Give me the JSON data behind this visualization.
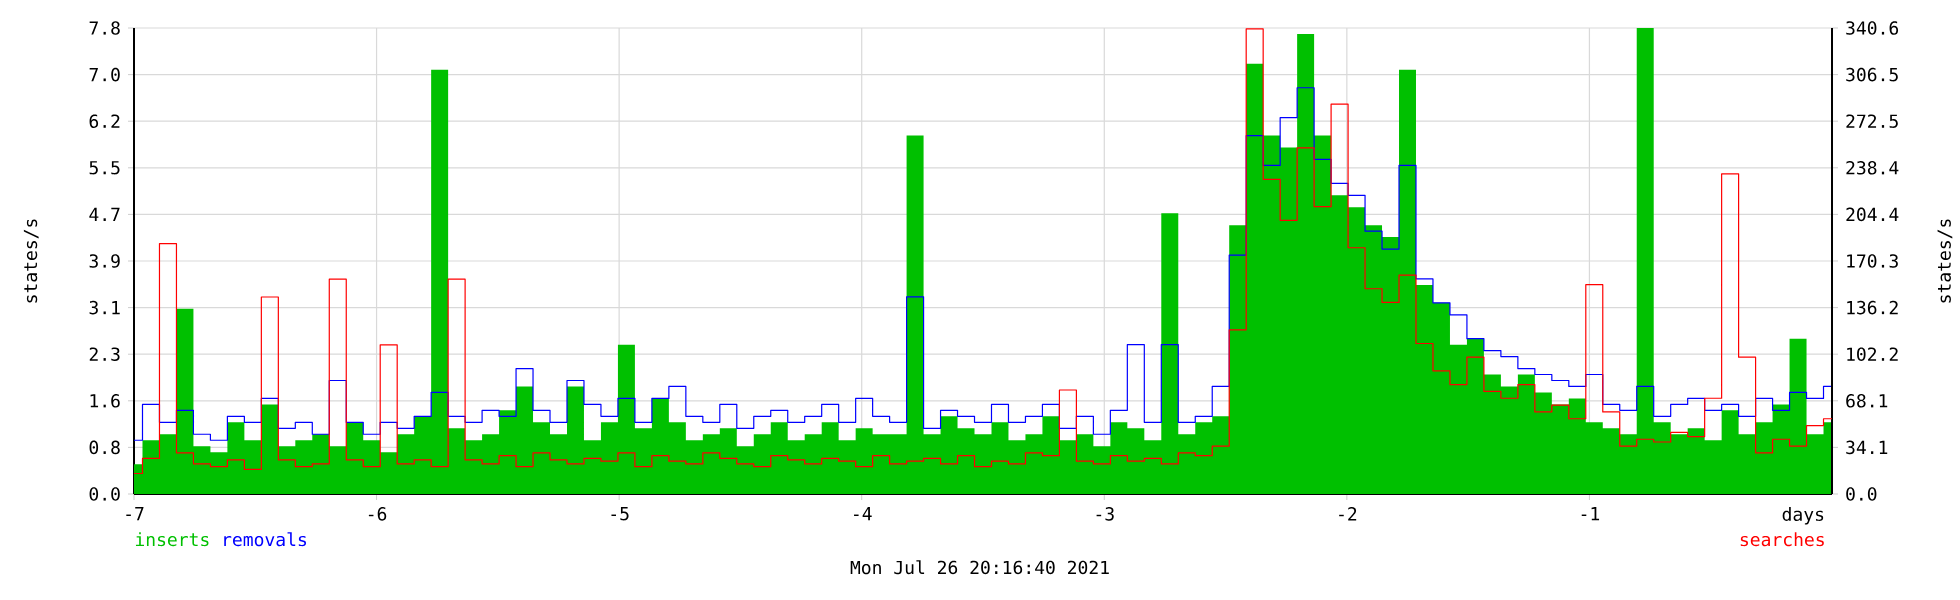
{
  "chart_data": {
    "type": "line",
    "xlabel": "days",
    "ylabel": "states/s",
    "y2label": "states/s",
    "annotations": [
      "Mon Jul 26 20:16:40 2021"
    ],
    "x": [
      -7,
      -6.93,
      -6.86,
      -6.79,
      -6.72,
      -6.65,
      -6.58,
      -6.51,
      -6.44,
      -6.37,
      -6.3,
      -6.23,
      -6.16,
      -6.09,
      -6.02,
      -5.95,
      -5.88,
      -5.81,
      -5.74,
      -5.67,
      -5.6,
      -5.53,
      -5.46,
      -5.39,
      -5.32,
      -5.25,
      -5.18,
      -5.11,
      -5.04,
      -4.97,
      -4.9,
      -4.83,
      -4.76,
      -4.69,
      -4.62,
      -4.55,
      -4.48,
      -4.41,
      -4.34,
      -4.27,
      -4.2,
      -4.13,
      -4.06,
      -3.99,
      -3.92,
      -3.85,
      -3.78,
      -3.71,
      -3.64,
      -3.57,
      -3.5,
      -3.43,
      -3.36,
      -3.29,
      -3.22,
      -3.15,
      -3.08,
      -3.01,
      -2.94,
      -2.87,
      -2.8,
      -2.73,
      -2.66,
      -2.59,
      -2.52,
      -2.45,
      -2.38,
      -2.31,
      -2.24,
      -2.17,
      -2.1,
      -2.03,
      -1.96,
      -1.89,
      -1.82,
      -1.75,
      -1.68,
      -1.61,
      -1.54,
      -1.47,
      -1.4,
      -1.33,
      -1.26,
      -1.19,
      -1.12,
      -1.05,
      -0.98,
      -0.91,
      -0.84,
      -0.77,
      -0.7,
      -0.63,
      -0.56,
      -0.49,
      -0.42,
      -0.35,
      -0.28,
      -0.21,
      -0.14,
      -0.07,
      0
    ],
    "series": [
      {
        "name": "inserts",
        "type": "area",
        "color": "#00c000",
        "values": [
          0.5,
          0.9,
          1.0,
          3.1,
          0.8,
          0.7,
          1.2,
          0.9,
          1.5,
          0.8,
          0.9,
          1.0,
          0.8,
          1.2,
          0.9,
          0.7,
          1.0,
          1.3,
          7.1,
          1.1,
          0.9,
          1.0,
          1.4,
          1.8,
          1.2,
          1.0,
          1.8,
          0.9,
          1.2,
          2.5,
          1.1,
          1.6,
          1.2,
          0.9,
          1.0,
          1.1,
          0.8,
          1.0,
          1.2,
          0.9,
          1.0,
          1.2,
          0.9,
          1.1,
          1.0,
          1.0,
          6.0,
          1.0,
          1.3,
          1.1,
          1.0,
          1.2,
          0.9,
          1.0,
          1.3,
          0.9,
          1.0,
          0.8,
          1.2,
          1.1,
          0.9,
          4.7,
          1.0,
          1.2,
          1.3,
          4.5,
          7.2,
          6.0,
          5.8,
          7.7,
          6.0,
          5.0,
          4.8,
          4.5,
          4.3,
          7.1,
          3.5,
          3.2,
          2.5,
          2.6,
          2.0,
          1.8,
          2.0,
          1.7,
          1.5,
          1.6,
          1.2,
          1.1,
          1.0,
          7.8,
          1.2,
          1.0,
          1.1,
          0.9,
          1.4,
          1.0,
          1.2,
          1.5,
          2.6,
          1.0,
          1.2
        ]
      },
      {
        "name": "removals",
        "color": "#0000ff",
        "values": [
          0.9,
          1.5,
          1.2,
          1.4,
          1.0,
          0.9,
          1.3,
          1.2,
          1.6,
          1.1,
          1.2,
          1.0,
          1.9,
          1.2,
          1.0,
          1.2,
          1.1,
          1.3,
          1.7,
          1.3,
          1.2,
          1.4,
          1.3,
          2.1,
          1.4,
          1.2,
          1.9,
          1.5,
          1.3,
          1.6,
          1.2,
          1.6,
          1.8,
          1.3,
          1.2,
          1.5,
          1.1,
          1.3,
          1.4,
          1.2,
          1.3,
          1.5,
          1.2,
          1.6,
          1.3,
          1.2,
          3.3,
          1.1,
          1.4,
          1.3,
          1.2,
          1.5,
          1.2,
          1.3,
          1.5,
          1.1,
          1.3,
          1.0,
          1.4,
          2.5,
          1.2,
          2.5,
          1.2,
          1.3,
          1.8,
          4.0,
          6.0,
          5.5,
          6.3,
          6.8,
          5.6,
          5.2,
          5.0,
          4.4,
          4.1,
          5.5,
          3.6,
          3.2,
          3.0,
          2.6,
          2.4,
          2.3,
          2.1,
          2.0,
          1.9,
          1.8,
          2.0,
          1.5,
          1.4,
          1.8,
          1.3,
          1.5,
          1.6,
          1.4,
          1.5,
          1.3,
          1.6,
          1.4,
          1.7,
          1.6,
          1.8
        ]
      },
      {
        "name": "searches",
        "color": "#ff0000",
        "axis": "y2",
        "values": [
          15,
          26,
          183,
          30,
          22,
          20,
          25,
          18,
          144,
          25,
          20,
          22,
          157,
          25,
          20,
          109,
          22,
          25,
          20,
          157,
          25,
          22,
          28,
          20,
          30,
          25,
          22,
          26,
          24,
          30,
          20,
          28,
          24,
          22,
          30,
          26,
          22,
          20,
          28,
          25,
          22,
          26,
          24,
          20,
          28,
          22,
          24,
          26,
          22,
          28,
          20,
          24,
          22,
          30,
          28,
          76,
          24,
          22,
          28,
          24,
          26,
          22,
          30,
          28,
          35,
          120,
          340,
          230,
          200,
          253,
          210,
          285,
          180,
          150,
          140,
          160,
          110,
          90,
          80,
          100,
          75,
          70,
          80,
          60,
          65,
          55,
          153,
          60,
          35,
          40,
          38,
          45,
          42,
          70,
          234,
          100,
          30,
          40,
          35,
          50,
          55
        ]
      }
    ],
    "xlim": [
      -7,
      0
    ],
    "xticks": [
      -7,
      -6,
      -5,
      -4,
      -3,
      -2,
      -1
    ],
    "ylim": [
      0,
      7.8
    ],
    "yticks": [
      {
        "value": 0,
        "label": "0.0"
      },
      {
        "value": 0.78,
        "label": "0.8"
      },
      {
        "value": 1.56,
        "label": "1.6"
      },
      {
        "value": 2.34,
        "label": "2.3"
      },
      {
        "value": 3.12,
        "label": "3.1"
      },
      3.9,
      {
        "value": 4.68,
        "label": "4.7"
      },
      {
        "value": 5.46,
        "label": "5.5"
      },
      {
        "value": 6.24,
        "label": "6.2"
      },
      {
        "value": 7.02,
        "label": "7.0"
      },
      7.8
    ],
    "y2lim": [
      0,
      340.6
    ],
    "y2ticks": [
      {
        "value": 0,
        "label": "0.0"
      },
      {
        "value": 34.06,
        "label": "34.1"
      },
      {
        "value": 68.12,
        "label": "68.1"
      },
      {
        "value": 102.18,
        "label": "102.2"
      },
      {
        "value": 136.24,
        "label": "136.2"
      },
      170.3,
      {
        "value": 204.36,
        "label": "204.4"
      },
      {
        "value": 238.42,
        "label": "238.4"
      },
      {
        "value": 272.48,
        "label": "272.5"
      },
      {
        "value": 306.54,
        "label": "306.5"
      },
      340.6
    ],
    "grid": true,
    "legend": "bottom"
  }
}
